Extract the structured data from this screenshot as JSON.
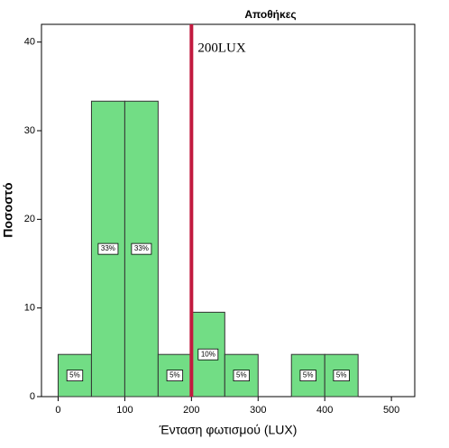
{
  "chart_data": {
    "type": "histogram",
    "title": "Αποθήκες",
    "x_label": "Ένταση φωτισμού (LUX)",
    "y_label": "Ποσοστό",
    "bins": [
      0,
      50,
      100,
      150,
      200,
      250,
      300,
      350,
      400,
      450
    ],
    "values": [
      4.76,
      33.33,
      33.33,
      4.76,
      9.52,
      4.76,
      0,
      4.76,
      4.76
    ],
    "value_labels": [
      "5%",
      "33%",
      "33%",
      "5%",
      "10%",
      "5%",
      null,
      "5%",
      "5%"
    ],
    "color": "#72dd85",
    "xlim": [
      -25,
      535
    ],
    "xticks": [
      0,
      100,
      200,
      300,
      400,
      500
    ],
    "ylim": [
      0,
      42
    ],
    "yticks": [
      0,
      10,
      20,
      30,
      40
    ],
    "reference_line": {
      "value": 200,
      "label": "200LUX",
      "color": "#c21a3f"
    }
  }
}
